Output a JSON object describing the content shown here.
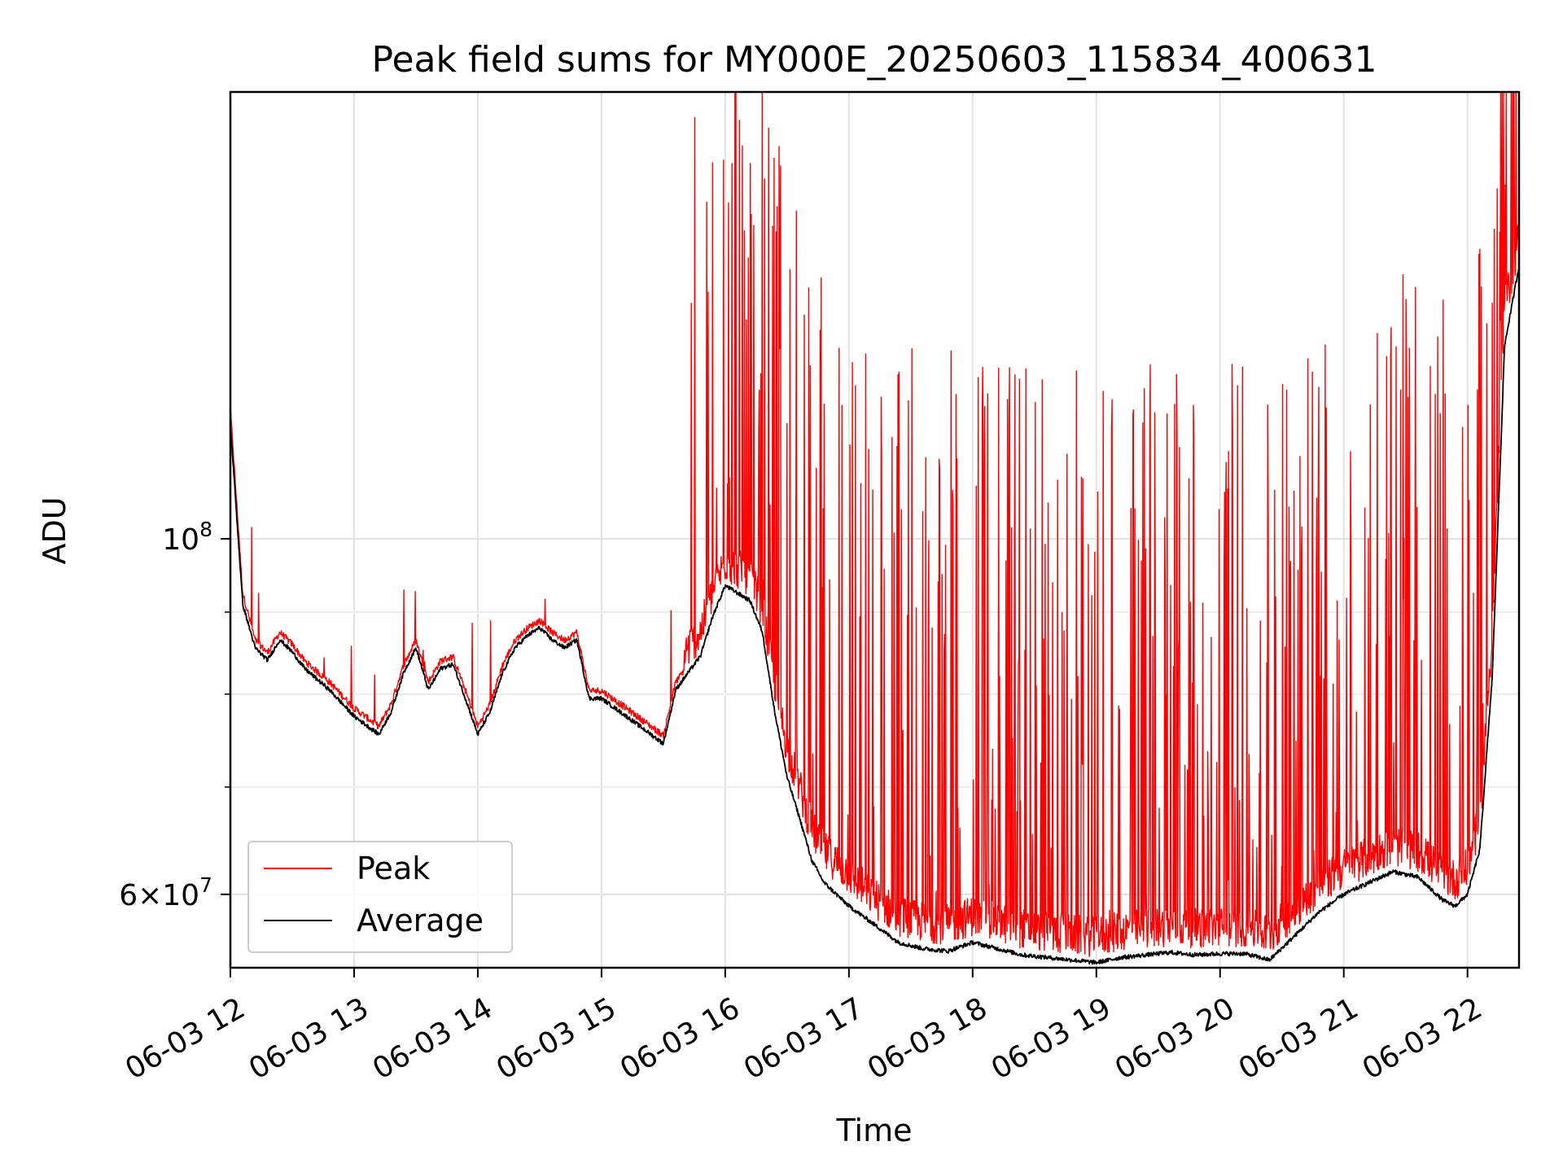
{
  "chart_data": {
    "type": "line",
    "title": "Peak field sums for MY000E_20250603_115834_400631",
    "xlabel": "Time",
    "ylabel": "ADU",
    "yscale": "log",
    "ylim": [
      54000000,
      190000000
    ],
    "xlim": [
      "2025-06-03 12:00",
      "2025-06-03 22:25"
    ],
    "x_ticks": [
      "06-03 12",
      "06-03 13",
      "06-03 14",
      "06-03 15",
      "06-03 16",
      "06-03 17",
      "06-03 18",
      "06-03 19",
      "06-03 20",
      "06-03 21",
      "06-03 22"
    ],
    "y_ticks": [
      {
        "value": 100000000,
        "label": "10^8"
      },
      {
        "value": 60000000,
        "label": "6×10^7"
      }
    ],
    "grid": true,
    "legend_position": "lower-left",
    "series": [
      {
        "name": "Peak",
        "color": "#ff0000",
        "x": [
          "12:00",
          "12:06",
          "12:12",
          "12:18",
          "12:24",
          "12:30",
          "12:36",
          "12:48",
          "13:00",
          "13:12",
          "13:18",
          "13:24",
          "13:30",
          "13:36",
          "13:42",
          "13:48",
          "13:54",
          "14:00",
          "14:06",
          "14:12",
          "14:18",
          "14:24",
          "14:30",
          "14:36",
          "14:42",
          "14:48",
          "14:54",
          "15:00",
          "15:12",
          "15:24",
          "15:30",
          "15:36",
          "15:42",
          "15:48",
          "15:54",
          "16:00",
          "16:06",
          "16:12",
          "16:18",
          "16:24",
          "16:30",
          "16:36",
          "16:42",
          "16:48",
          "17:00",
          "17:12",
          "17:24",
          "17:36",
          "17:48",
          "18:00",
          "18:12",
          "18:24",
          "18:36",
          "18:48",
          "19:00",
          "19:12",
          "19:24",
          "19:36",
          "19:48",
          "20:00",
          "20:12",
          "20:24",
          "20:36",
          "20:48",
          "21:00",
          "21:12",
          "21:24",
          "21:36",
          "21:48",
          "21:54",
          "22:00",
          "22:06",
          "22:12",
          "22:18",
          "22:25"
        ],
        "values": [
          120000000,
          92000000,
          86000000,
          84500000,
          87000000,
          85500000,
          83500000,
          81000000,
          78000000,
          76000000,
          78500000,
          83000000,
          86000000,
          81000000,
          83500000,
          84000000,
          80000000,
          76000000,
          78500000,
          83000000,
          86000000,
          87500000,
          88500000,
          87000000,
          86000000,
          87000000,
          80000000,
          80000000,
          78000000,
          76000000,
          75000000,
          81000000,
          83000000,
          85000000,
          90000000,
          94000000,
          93000000,
          92000000,
          88000000,
          79000000,
          72000000,
          68000000,
          64000000,
          62000000,
          60000000,
          58000000,
          56500000,
          56000000,
          55800000,
          56500000,
          56000000,
          55500000,
          55200000,
          55000000,
          54800000,
          55300000,
          55500000,
          55700000,
          55500000,
          55600000,
          55600000,
          55000000,
          57000000,
          59000000,
          60500000,
          61500000,
          62500000,
          62000000,
          60000000,
          59500000,
          60500000,
          65000000,
          85000000,
          135000000,
          150000000
        ]
      },
      {
        "name": "Average",
        "color": "#000000",
        "x": [
          "12:00",
          "12:06",
          "12:12",
          "12:18",
          "12:24",
          "12:30",
          "12:36",
          "12:48",
          "13:00",
          "13:12",
          "13:18",
          "13:24",
          "13:30",
          "13:36",
          "13:42",
          "13:48",
          "13:54",
          "14:00",
          "14:06",
          "14:12",
          "14:18",
          "14:24",
          "14:30",
          "14:36",
          "14:42",
          "14:48",
          "14:54",
          "15:00",
          "15:12",
          "15:24",
          "15:30",
          "15:36",
          "15:42",
          "15:48",
          "15:54",
          "16:00",
          "16:06",
          "16:12",
          "16:18",
          "16:24",
          "16:30",
          "16:36",
          "16:42",
          "16:48",
          "17:00",
          "17:12",
          "17:24",
          "17:36",
          "17:48",
          "18:00",
          "18:12",
          "18:24",
          "18:36",
          "18:48",
          "19:00",
          "19:12",
          "19:24",
          "19:36",
          "19:48",
          "20:00",
          "20:12",
          "20:24",
          "20:36",
          "20:48",
          "21:00",
          "21:12",
          "21:24",
          "21:36",
          "21:48",
          "21:54",
          "22:00",
          "22:06",
          "22:12",
          "22:18",
          "22:25"
        ],
        "values": [
          118000000,
          91000000,
          85500000,
          84000000,
          86500000,
          85000000,
          83000000,
          80500000,
          77500000,
          75500000,
          78000000,
          82500000,
          85500000,
          80500000,
          83000000,
          83500000,
          79500000,
          75500000,
          78000000,
          82500000,
          85500000,
          87000000,
          88000000,
          86500000,
          85500000,
          86500000,
          79500000,
          79500000,
          77500000,
          75500000,
          74500000,
          80500000,
          82500000,
          84500000,
          89500000,
          93500000,
          92500000,
          91500000,
          87500000,
          78000000,
          71000000,
          67000000,
          63000000,
          61000000,
          59000000,
          57500000,
          56000000,
          55500000,
          55300000,
          56000000,
          55500000,
          55000000,
          54800000,
          54600000,
          54400000,
          54800000,
          55000000,
          55200000,
          55000000,
          55100000,
          55100000,
          54600000,
          56500000,
          58500000,
          60000000,
          61000000,
          62000000,
          61500000,
          59500000,
          59000000,
          60000000,
          64000000,
          82000000,
          132000000,
          148000000
        ]
      }
    ]
  }
}
